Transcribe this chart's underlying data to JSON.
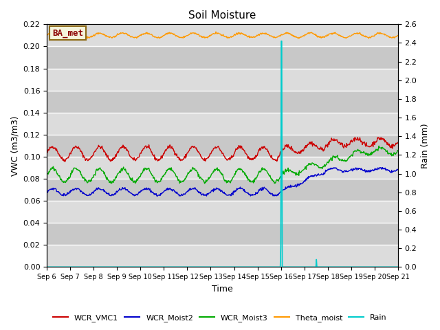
{
  "title": "Soil Moisture",
  "xlabel": "Time",
  "ylabel_left": "VWC (m3/m3)",
  "ylabel_right": "Rain (mm)",
  "ylim_left": [
    0.0,
    0.22
  ],
  "ylim_right": [
    0.0,
    2.6
  ],
  "yticks_left": [
    0.0,
    0.02,
    0.04,
    0.06,
    0.08,
    0.1,
    0.12,
    0.14,
    0.16,
    0.18,
    0.2,
    0.22
  ],
  "yticks_right": [
    0.0,
    0.2,
    0.4,
    0.6,
    0.8,
    1.0,
    1.2,
    1.4,
    1.6,
    1.8,
    2.0,
    2.2,
    2.4,
    2.6
  ],
  "xtick_labels": [
    "Sep 6",
    "Sep 7",
    "Sep 8",
    "Sep 9",
    "Sep 10",
    "Sep 11",
    "Sep 12",
    "Sep 13",
    "Sep 14",
    "Sep 15",
    "Sep 16",
    "Sep 17",
    "Sep 18",
    "Sep 19",
    "Sep 20",
    "Sep 21"
  ],
  "bg_color_light": "#dcdcdc",
  "bg_color_dark": "#c8c8c8",
  "fig_color": "#ffffff",
  "legend_entries": [
    "WCR_VMC1",
    "WCR_Moist2",
    "WCR_Moist3",
    "Theta_moist",
    "Rain"
  ],
  "legend_colors": [
    "#cc0000",
    "#0000cc",
    "#00aa00",
    "#ff9900",
    "#00cccc"
  ],
  "annotation_label": "BA_met",
  "annotation_color": "#8b0000",
  "annotation_bg": "#f5f5dc",
  "annotation_border": "#8b6914",
  "n_days": 15,
  "rain_day": 10.0,
  "rain_spike2_day": 11.5,
  "theta_base": 0.21,
  "theta_amp": 0.002,
  "vmc1_base": 0.103,
  "vmc1_amp": 0.006,
  "moist2_base": 0.068,
  "moist2_amp": 0.003,
  "moist3_base": 0.083,
  "moist3_amp": 0.006
}
